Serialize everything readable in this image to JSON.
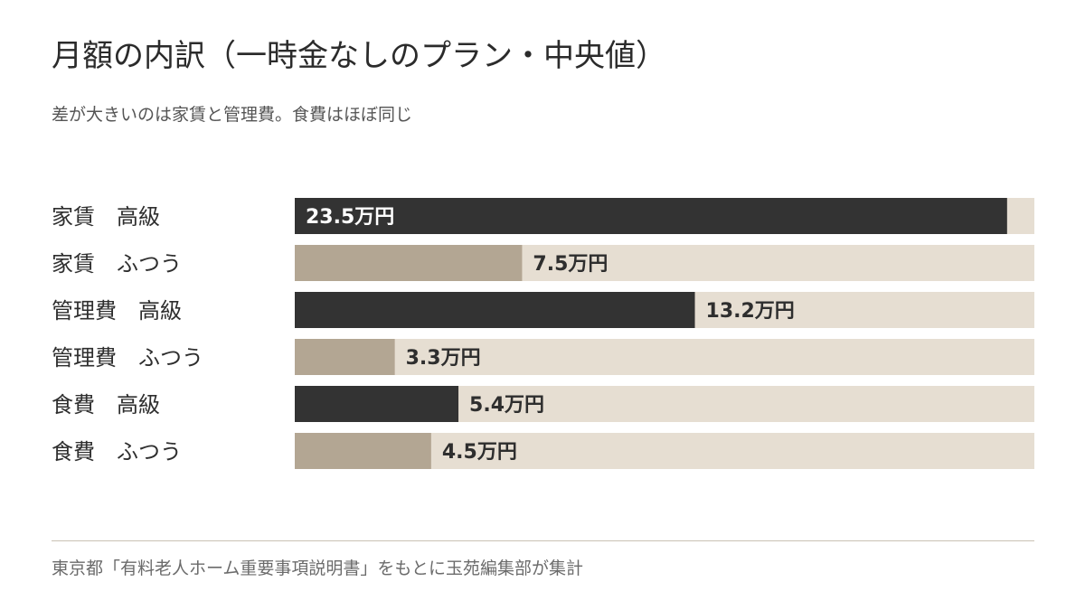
{
  "title": "月額の内訳（一時金なしのプラン・中央値）",
  "subtitle": "差が大きいのは家賃と管理費。食費はほぼ同じ",
  "source": "東京都「有料老人ホーム重要事項説明書」をもとに玉苑編集部が集計",
  "colors": {
    "high": "#333333",
    "normal": "#b3a693",
    "track": "#e6ded2",
    "label_on_dark": "#ffffff",
    "label_on_light": "#2e2e2e"
  },
  "chart_data": {
    "type": "bar",
    "orientation": "horizontal",
    "unit": "万円",
    "xlim": [
      0,
      24.4
    ],
    "grid": false,
    "categories": [
      "家賃　高級",
      "家賃　ふつう",
      "管理費　高級",
      "管理費　ふつう",
      "食費　高級",
      "食費　ふつう"
    ],
    "values": [
      23.5,
      7.5,
      13.2,
      3.3,
      5.4,
      4.5
    ],
    "value_labels": [
      "23.5万円",
      "7.5万円",
      "13.2万円",
      "3.3万円",
      "5.4万円",
      "4.5万円"
    ],
    "tiers": [
      "high",
      "normal",
      "high",
      "normal",
      "high",
      "normal"
    ]
  }
}
